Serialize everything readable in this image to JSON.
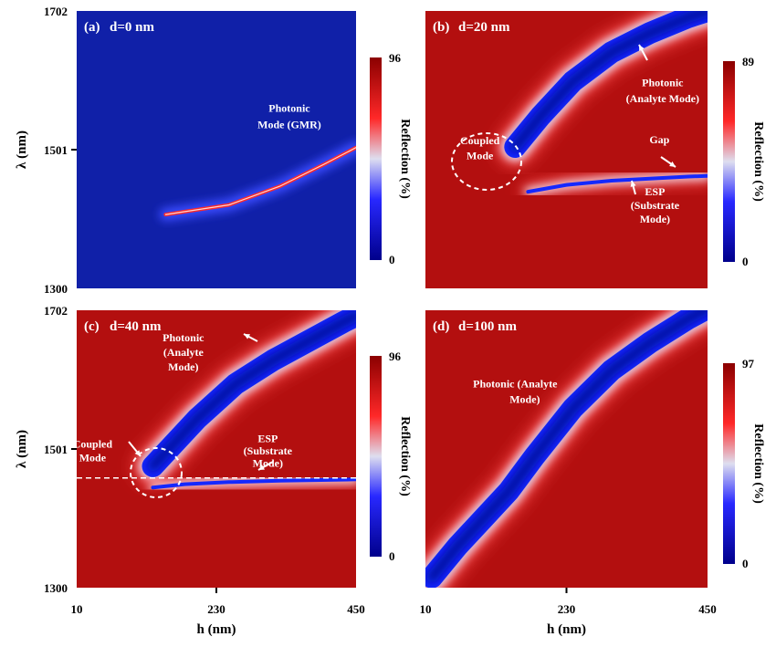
{
  "chart_data": [
    {
      "type": "heatmap",
      "panel_label": "(a)",
      "title": "d=0 nm",
      "xlabel": "",
      "ylabel": "λ (nm)",
      "x_ticks": [],
      "y_ticks": [
        "1702",
        "1501",
        "1300"
      ],
      "xlim": [
        10,
        450
      ],
      "ylim": [
        1300,
        1702
      ],
      "colorbar": {
        "label": "Reflection (%)",
        "min": 0,
        "max": 96,
        "min_label": "0",
        "max_label": "96"
      },
      "modes": [
        {
          "name": "Photonic Mode (GMR)",
          "h": [
            150,
            250,
            330,
            400,
            450
          ],
          "lambda": [
            1407,
            1421,
            1448,
            1480,
            1504
          ]
        }
      ],
      "annotations": [
        {
          "text": "Photonic",
          "h": 345,
          "lambda": 1556
        },
        {
          "text": "Mode (GMR)",
          "h": 345,
          "lambda": 1532
        }
      ]
    },
    {
      "type": "heatmap",
      "panel_label": "(b)",
      "title": "d=20 nm",
      "xlabel": "",
      "ylabel": "",
      "x_ticks": [],
      "y_ticks": [],
      "xlim": [
        10,
        450
      ],
      "ylim": [
        1300,
        1702
      ],
      "colorbar": {
        "label": "Reflection (%)",
        "min": 0,
        "max": 89,
        "min_label": "0",
        "max_label": "89"
      },
      "modes": [
        {
          "name": "Photonic (Analyte Mode)",
          "h": [
            150,
            190,
            240,
            300,
            360,
            420,
            450
          ],
          "lambda": [
            1505,
            1550,
            1600,
            1642,
            1670,
            1693,
            1702
          ]
        },
        {
          "name": "ESP (Substrate Mode)",
          "h": [
            170,
            230,
            300,
            360,
            420,
            450
          ],
          "lambda": [
            1440,
            1450,
            1456,
            1459,
            1462,
            1463
          ]
        }
      ],
      "annotations": [
        {
          "text": "Photonic",
          "h": 380,
          "lambda": 1593
        },
        {
          "text": "(Analyte Mode)",
          "h": 380,
          "lambda": 1570
        },
        {
          "text": "Coupled",
          "h": 95,
          "lambda": 1509
        },
        {
          "text": "Mode",
          "h": 95,
          "lambda": 1487
        },
        {
          "text": "Gap",
          "h": 375,
          "lambda": 1510
        },
        {
          "text": "ESP",
          "h": 368,
          "lambda": 1435
        },
        {
          "text": "(Substrate",
          "h": 368,
          "lambda": 1415
        },
        {
          "text": "Mode)",
          "h": 368,
          "lambda": 1395
        }
      ]
    },
    {
      "type": "heatmap",
      "panel_label": "(c)",
      "title": "d=40 nm",
      "xlabel": "h (nm)",
      "ylabel": "λ (nm)",
      "x_ticks": [
        "10",
        "230",
        "450"
      ],
      "y_ticks": [
        "1702",
        "1501",
        "1300"
      ],
      "xlim": [
        10,
        450
      ],
      "ylim": [
        1300,
        1702
      ],
      "colorbar": {
        "label": "Reflection (%)",
        "min": 0,
        "max": 96,
        "min_label": "0",
        "max_label": "96"
      },
      "modes": [
        {
          "name": "Photonic (Analyte Mode)",
          "h": [
            130,
            200,
            260,
            320,
            380,
            430,
            450
          ],
          "lambda": [
            1476,
            1545,
            1595,
            1630,
            1660,
            1685,
            1694
          ]
        },
        {
          "name": "ESP (Substrate Mode)",
          "h": [
            130,
            180,
            250,
            330,
            450
          ],
          "lambda": [
            1445,
            1450,
            1453,
            1455,
            1457
          ]
        }
      ],
      "dashed_line_lambda": 1459,
      "annotations": [
        {
          "text": "Photonic",
          "h": 178,
          "lambda": 1657
        },
        {
          "text": "(Analyte",
          "h": 178,
          "lambda": 1636
        },
        {
          "text": "Mode)",
          "h": 178,
          "lambda": 1615
        },
        {
          "text": "Coupled",
          "h": 35,
          "lambda": 1503
        },
        {
          "text": "Mode",
          "h": 35,
          "lambda": 1483
        },
        {
          "text": "ESP",
          "h": 311,
          "lambda": 1511
        },
        {
          "text": "(Substrate",
          "h": 311,
          "lambda": 1493
        },
        {
          "text": "Mode)",
          "h": 311,
          "lambda": 1475
        }
      ]
    },
    {
      "type": "heatmap",
      "panel_label": "(d)",
      "title": "d=100 nm",
      "xlabel": "h (nm)",
      "ylabel": "",
      "x_ticks": [
        "10",
        "230",
        "450"
      ],
      "y_ticks": [],
      "xlim": [
        10,
        450
      ],
      "ylim": [
        1300,
        1702
      ],
      "colorbar": {
        "label": "Reflection (%)",
        "min": 0,
        "max": 97,
        "min_label": "0",
        "max_label": "97"
      },
      "modes": [
        {
          "name": "Photonic (Analyte Mode)",
          "h": [
            20,
            60,
            100,
            140,
            180,
            240,
            300,
            360,
            420,
            450
          ],
          "lambda": [
            1315,
            1360,
            1400,
            1440,
            1490,
            1560,
            1615,
            1655,
            1690,
            1705
          ]
        }
      ],
      "annotations": [
        {
          "text": "Photonic (Analyte",
          "h": 150,
          "lambda": 1590
        },
        {
          "text": "Mode)",
          "h": 165,
          "lambda": 1568
        }
      ]
    }
  ]
}
